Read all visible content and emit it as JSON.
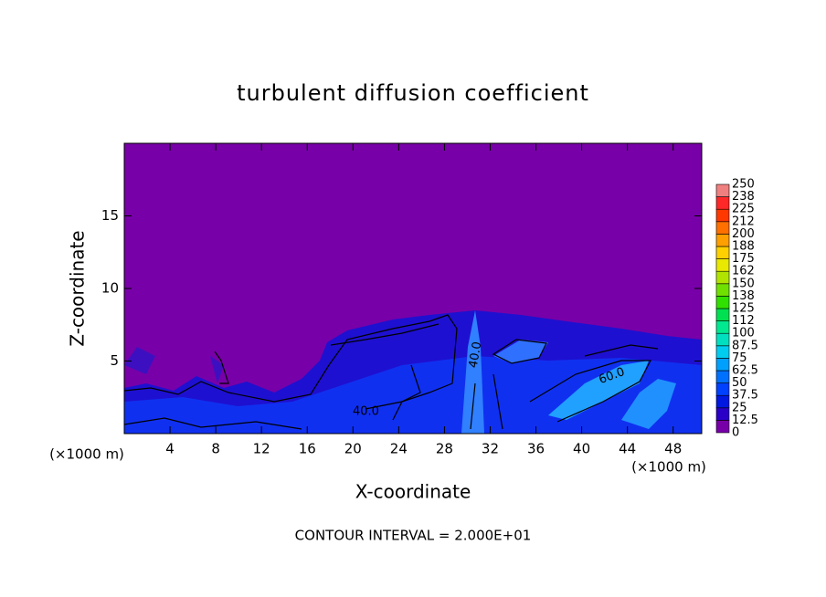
{
  "chart_data": {
    "type": "heatmap",
    "title": "turbulent diffusion coefficient",
    "x_label": "X-coordinate",
    "y_label": "Z-coordinate",
    "x_unit": "(×1000 m)",
    "footnote": "CONTOUR INTERVAL = 2.000E+01",
    "annotations": [
      "40.0",
      "40.0",
      "60.0"
    ],
    "xlim": [
      0,
      50.5
    ],
    "xticks": [
      4,
      8,
      12,
      16,
      20,
      24,
      28,
      32,
      36,
      40,
      44,
      48
    ],
    "ylim": [
      0,
      20
    ],
    "yticks": [
      5,
      10,
      15
    ],
    "colorbar": {
      "levels": [
        0,
        12.5,
        25,
        37.5,
        50,
        62.5,
        75,
        87.5,
        100,
        {
          "value": 112.5,
          "label": "112"
        },
        125,
        {
          "value": 137.5,
          "label": "138"
        },
        150,
        {
          "value": 162.5,
          "label": "162"
        },
        175,
        {
          "value": 187.5,
          "label": "188"
        },
        200,
        {
          "value": 212.5,
          "label": "212"
        },
        225,
        {
          "value": 237.5,
          "label": "238"
        },
        250
      ],
      "colors": [
        "#7800a8",
        "#2a00c8",
        "#0018e0",
        "#0040ff",
        "#0070ff",
        "#00a0ff",
        "#00ccf0",
        "#00e0c0",
        "#00e890",
        "#00e050",
        "#30e000",
        "#70e000",
        "#b0e400",
        "#e8e800",
        "#ffd000",
        "#ffa000",
        "#ff7000",
        "#ff3800",
        "#ff2828",
        "#f08080"
      ]
    }
  }
}
